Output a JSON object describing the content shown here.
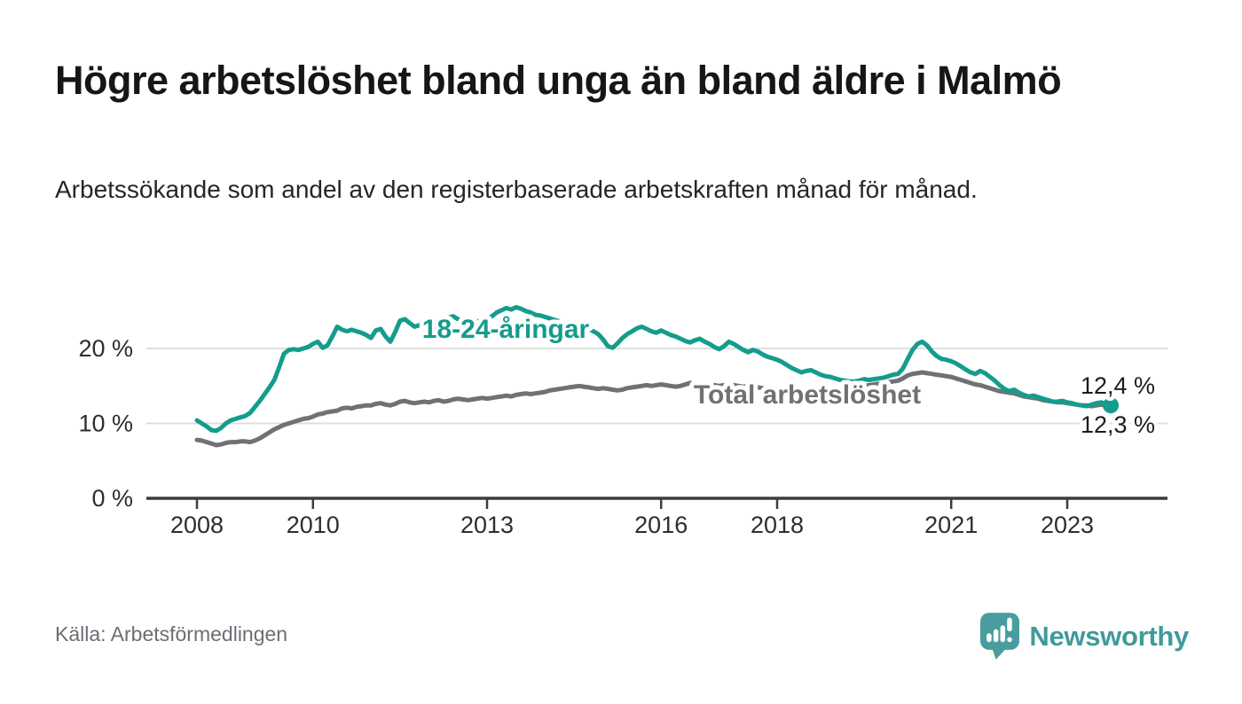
{
  "chart_data": {
    "type": "line",
    "title": "Högre arbetslöshet bland unga än bland äldre i Malmö",
    "subtitle": "Arbetssökande som andel av den registerbaserade arbetskraften månad för månad.",
    "source": "Källa: Arbetsförmedlingen",
    "x_unit": "month",
    "x_start": "2008-01",
    "x_end": "2023-10",
    "ylim": [
      0,
      26
    ],
    "grid": "horizontal",
    "legend_position": "inline-labels",
    "y_ticks": [
      {
        "value": 0,
        "label": "0 %"
      },
      {
        "value": 10,
        "label": "10 %"
      },
      {
        "value": 20,
        "label": "20 %"
      }
    ],
    "x_ticks": [
      {
        "year": 2008,
        "label": "2008"
      },
      {
        "year": 2010,
        "label": "2010"
      },
      {
        "year": 2013,
        "label": "2013"
      },
      {
        "year": 2016,
        "label": "2016"
      },
      {
        "year": 2018,
        "label": "2018"
      },
      {
        "year": 2021,
        "label": "2021"
      },
      {
        "year": 2023,
        "label": "2023"
      }
    ],
    "colors": {
      "axis": "#3d3d3d",
      "grid": "#dedede",
      "tick_text": "#2e2e2e",
      "end_label_text": "#1c1c1c"
    },
    "series": [
      {
        "name": "18-24-åringar",
        "color": "#149C8C",
        "end_label": "12,4 %",
        "end_value": 12.4,
        "end_dot": true,
        "values": [
          10.4,
          10.0,
          9.6,
          9.1,
          9.0,
          9.4,
          10.0,
          10.4,
          10.6,
          10.8,
          11.0,
          11.4,
          12.2,
          13.0,
          13.9,
          14.8,
          15.8,
          17.5,
          19.3,
          19.8,
          19.9,
          19.8,
          20.0,
          20.2,
          20.6,
          20.9,
          20.1,
          20.4,
          21.6,
          22.9,
          22.5,
          22.3,
          22.5,
          22.3,
          22.1,
          21.8,
          21.4,
          22.4,
          22.6,
          21.6,
          20.9,
          22.2,
          23.7,
          23.9,
          23.4,
          22.9,
          23.1,
          23.3,
          23.4,
          23.2,
          23.5,
          23.8,
          24.1,
          24.3,
          23.9,
          23.7,
          24.0,
          23.8,
          23.6,
          23.8,
          23.9,
          24.3,
          24.8,
          25.1,
          25.4,
          25.2,
          25.5,
          25.3,
          25.0,
          24.8,
          24.5,
          24.4,
          24.2,
          24.0,
          23.8,
          23.6,
          23.4,
          23.1,
          22.8,
          22.7,
          22.9,
          22.6,
          22.3,
          21.9,
          21.2,
          20.3,
          20.1,
          20.7,
          21.4,
          21.9,
          22.3,
          22.7,
          22.9,
          22.6,
          22.3,
          22.1,
          22.4,
          22.1,
          21.8,
          21.6,
          21.3,
          21.0,
          20.8,
          21.1,
          21.3,
          20.9,
          20.6,
          20.2,
          19.9,
          20.3,
          20.9,
          20.6,
          20.2,
          19.8,
          19.5,
          19.8,
          19.6,
          19.2,
          18.9,
          18.7,
          18.5,
          18.2,
          17.8,
          17.4,
          17.1,
          16.8,
          17.0,
          17.1,
          16.8,
          16.5,
          16.3,
          16.2,
          16.0,
          15.8,
          15.7,
          15.6,
          15.6,
          15.7,
          15.9,
          15.8,
          15.9,
          16.0,
          16.1,
          16.3,
          16.5,
          16.6,
          17.3,
          18.6,
          19.8,
          20.6,
          20.9,
          20.4,
          19.6,
          19.0,
          18.6,
          18.5,
          18.3,
          18.0,
          17.6,
          17.2,
          16.8,
          16.6,
          17.0,
          16.7,
          16.2,
          15.7,
          15.1,
          14.6,
          14.3,
          14.5,
          14.1,
          13.8,
          13.6,
          13.7,
          13.5,
          13.3,
          13.1,
          12.9,
          12.9,
          13.0,
          12.8,
          12.7,
          12.5,
          12.4,
          12.3,
          12.5,
          12.7,
          12.8,
          12.6,
          12.4
        ]
      },
      {
        "name": "Total arbetslöshet",
        "color": "#717175",
        "end_label": "12,3 %",
        "end_value": 12.3,
        "end_dot": false,
        "values": [
          7.8,
          7.7,
          7.5,
          7.3,
          7.1,
          7.2,
          7.4,
          7.5,
          7.5,
          7.6,
          7.6,
          7.5,
          7.7,
          8.0,
          8.4,
          8.8,
          9.2,
          9.5,
          9.8,
          10.0,
          10.2,
          10.4,
          10.6,
          10.7,
          10.9,
          11.2,
          11.3,
          11.5,
          11.6,
          11.7,
          12.0,
          12.1,
          12.0,
          12.2,
          12.3,
          12.4,
          12.4,
          12.6,
          12.7,
          12.5,
          12.4,
          12.6,
          12.9,
          13.0,
          12.8,
          12.7,
          12.8,
          12.9,
          12.8,
          13.0,
          13.1,
          12.9,
          13.0,
          13.2,
          13.3,
          13.2,
          13.1,
          13.2,
          13.3,
          13.4,
          13.3,
          13.4,
          13.5,
          13.6,
          13.7,
          13.6,
          13.8,
          13.9,
          14.0,
          13.9,
          14.0,
          14.1,
          14.2,
          14.4,
          14.5,
          14.6,
          14.7,
          14.8,
          14.9,
          15.0,
          14.9,
          14.8,
          14.7,
          14.6,
          14.7,
          14.6,
          14.5,
          14.4,
          14.5,
          14.7,
          14.8,
          14.9,
          15.0,
          15.1,
          15.0,
          15.1,
          15.2,
          15.1,
          15.0,
          14.9,
          15.0,
          15.2,
          15.4,
          15.3,
          15.2,
          15.3,
          15.2,
          15.1,
          15.0,
          15.1,
          15.2,
          15.1,
          15.0,
          14.9,
          15.0,
          14.9,
          14.8,
          14.7,
          14.6,
          14.7,
          14.6,
          14.5,
          14.4,
          14.3,
          14.2,
          14.3,
          14.4,
          14.3,
          14.2,
          14.1,
          14.2,
          14.3,
          14.4,
          14.5,
          14.6,
          14.7,
          14.8,
          14.9,
          15.0,
          15.1,
          15.2,
          15.3,
          15.4,
          15.5,
          15.6,
          15.7,
          16.0,
          16.4,
          16.6,
          16.7,
          16.8,
          16.7,
          16.6,
          16.5,
          16.4,
          16.3,
          16.2,
          16.0,
          15.8,
          15.6,
          15.4,
          15.2,
          15.1,
          14.9,
          14.7,
          14.5,
          14.3,
          14.2,
          14.1,
          14.0,
          13.8,
          13.6,
          13.5,
          13.4,
          13.3,
          13.1,
          13.0,
          12.9,
          12.8,
          12.8,
          12.7,
          12.6,
          12.5,
          12.4,
          12.4,
          12.3,
          12.4,
          12.5,
          12.4,
          12.3
        ]
      }
    ]
  },
  "footer": {
    "brand": "Newsworthy",
    "brand_icon": "newsworthy-speech-bubble-chart-icon",
    "brand_color": "#3f9a9b"
  }
}
